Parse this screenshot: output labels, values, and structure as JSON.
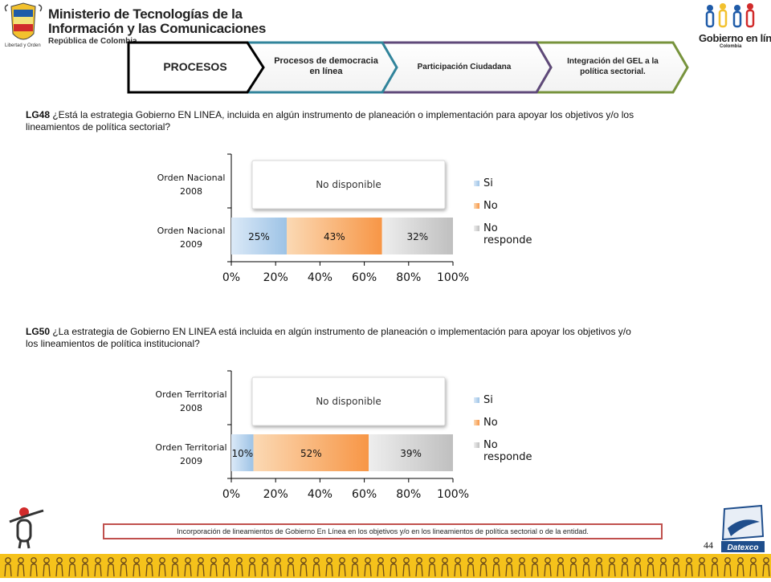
{
  "header": {
    "ministry_line1": "Ministerio de Tecnologías de la",
    "ministry_line2": "Información y las Comunicaciones",
    "ministry_line3": "República de Colombia",
    "crest_motto": "Libertad y Orden",
    "gel_logo_text": "Gobierno en línea",
    "gel_logo_sub": "Colombia"
  },
  "nav": {
    "steps": [
      {
        "label": "PROCESOS",
        "border": "#000000"
      },
      {
        "label": "Procesos de democracia en línea",
        "border": "#31849b"
      },
      {
        "label": "Participación Ciudadana",
        "border": "#5f497a"
      },
      {
        "label": "Integración del GEL a la política sectorial.",
        "border": "#77933c"
      }
    ]
  },
  "questions": {
    "q1_code": "LG48",
    "q1_text": " ¿Está la estrategia Gobierno EN LINEA,  incluida en algún instrumento de planeación   o implementación  para apoyar  los objetivos y/o los lineamientos de política sectorial?",
    "q2_code": "LG50",
    "q2_text": " ¿La estrategia de Gobierno EN LINEA está incluida en algún instrumento de planeación o implementación para apoyar  los objetivos y/o los lineamientos de política institucional?"
  },
  "chart_data": [
    {
      "type": "bar",
      "orientation": "horizontal",
      "stacked": "percent",
      "categories": [
        "Orden Nacional 2008",
        "Orden Nacional 2009"
      ],
      "category_lines": [
        [
          "Orden Nacional",
          "2008"
        ],
        [
          "Orden Nacional",
          "2009"
        ]
      ],
      "series": [
        {
          "name": "Si",
          "values": [
            null,
            25
          ],
          "labels": [
            "",
            "25%"
          ]
        },
        {
          "name": "No",
          "values": [
            null,
            43
          ],
          "labels": [
            "",
            "43%"
          ]
        },
        {
          "name": "No responde",
          "values": [
            null,
            32
          ],
          "labels": [
            "",
            "32%"
          ]
        }
      ],
      "unavailable_note": "No disponible",
      "xticks": [
        "0%",
        "20%",
        "40%",
        "60%",
        "80%",
        "100%"
      ],
      "xlim": [
        0,
        100
      ],
      "legend": "right",
      "colors": [
        "#9dc3e6",
        "#f79646",
        "#bfbfbf"
      ]
    },
    {
      "type": "bar",
      "orientation": "horizontal",
      "stacked": "percent",
      "categories": [
        "Orden Territorial 2008",
        "Orden Territorial 2009"
      ],
      "category_lines": [
        [
          "Orden Territorial",
          "2008"
        ],
        [
          "Orden Territorial",
          "2009"
        ]
      ],
      "series": [
        {
          "name": "Si",
          "values": [
            null,
            10
          ],
          "labels": [
            "",
            "10%"
          ]
        },
        {
          "name": "No",
          "values": [
            null,
            52
          ],
          "labels": [
            "",
            "52%"
          ]
        },
        {
          "name": "No responde",
          "values": [
            null,
            39
          ],
          "labels": [
            "",
            "39%"
          ]
        }
      ],
      "unavailable_note": "No disponible",
      "xticks": [
        "0%",
        "20%",
        "40%",
        "60%",
        "80%",
        "100%"
      ],
      "xlim": [
        0,
        100
      ],
      "legend": "right",
      "colors": [
        "#9dc3e6",
        "#f79646",
        "#bfbfbf"
      ]
    }
  ],
  "footer": {
    "text": "Incorporación de lineamientos de Gobierno En Línea en los objetivos y/o  en los lineamientos de política sectorial o de la entidad.",
    "page_number": "44",
    "brand": "Datexco"
  }
}
